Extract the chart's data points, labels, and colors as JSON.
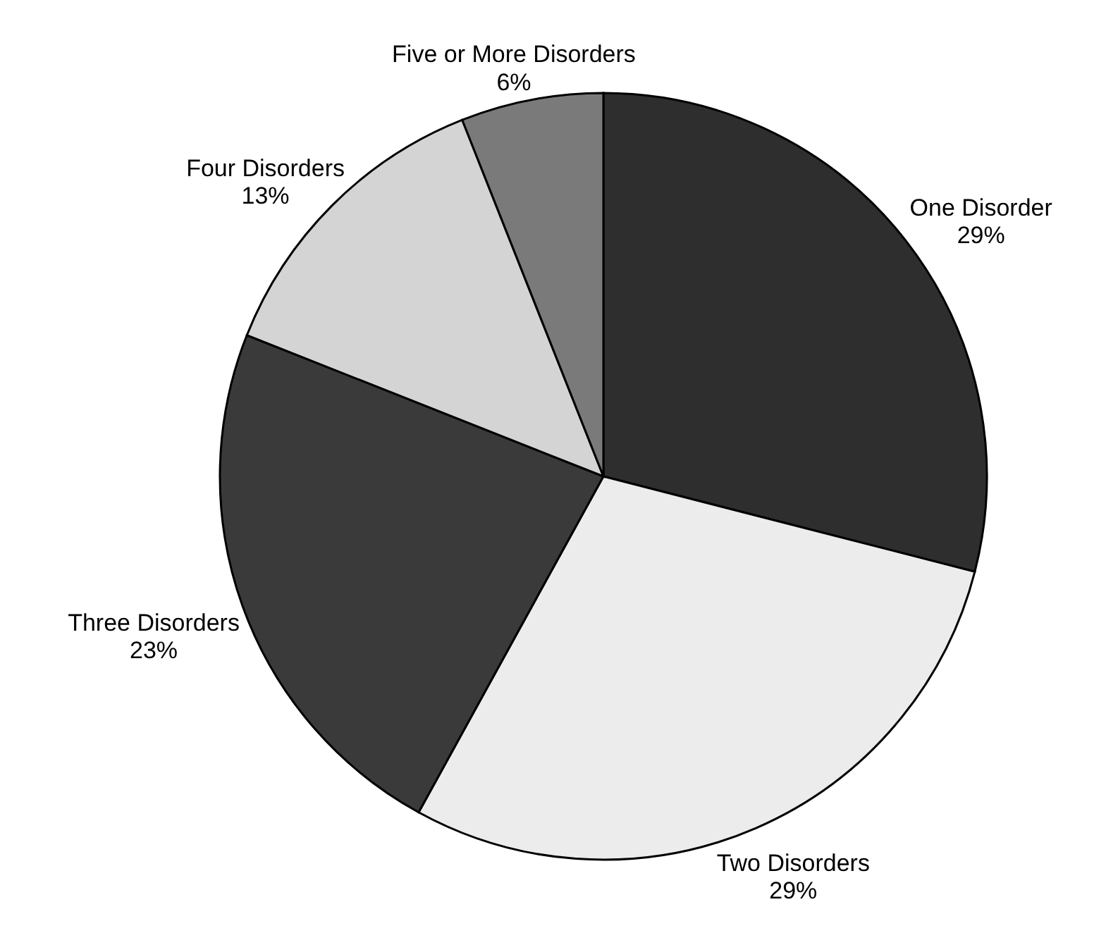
{
  "chart_data": {
    "type": "pie",
    "categories": [
      "One Disorder",
      "Two Disorders",
      "Three Disorders",
      "Four Disorders",
      "Five or More Disorders"
    ],
    "values": [
      29,
      29,
      23,
      13,
      6
    ],
    "colors": [
      "#2e2e2e",
      "#ececec",
      "#3a3a3a",
      "#d4d4d4",
      "#7a7a7a"
    ],
    "value_labels": [
      "29%",
      "29%",
      "23%",
      "13%",
      "6%"
    ],
    "legend": false
  }
}
